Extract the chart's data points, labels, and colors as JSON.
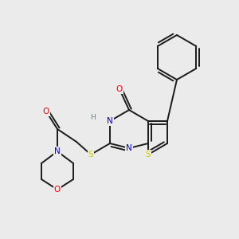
{
  "background_color": "#ebebeb",
  "bg_rgb": [
    0.922,
    0.922,
    0.922
  ],
  "colors": {
    "C": "#000000",
    "N": "#0000ff",
    "O": "#ff0000",
    "S": "#cccc00",
    "H": "#4a9090",
    "bond": "#000000"
  },
  "font_size": 7.5,
  "lw": 1.3
}
